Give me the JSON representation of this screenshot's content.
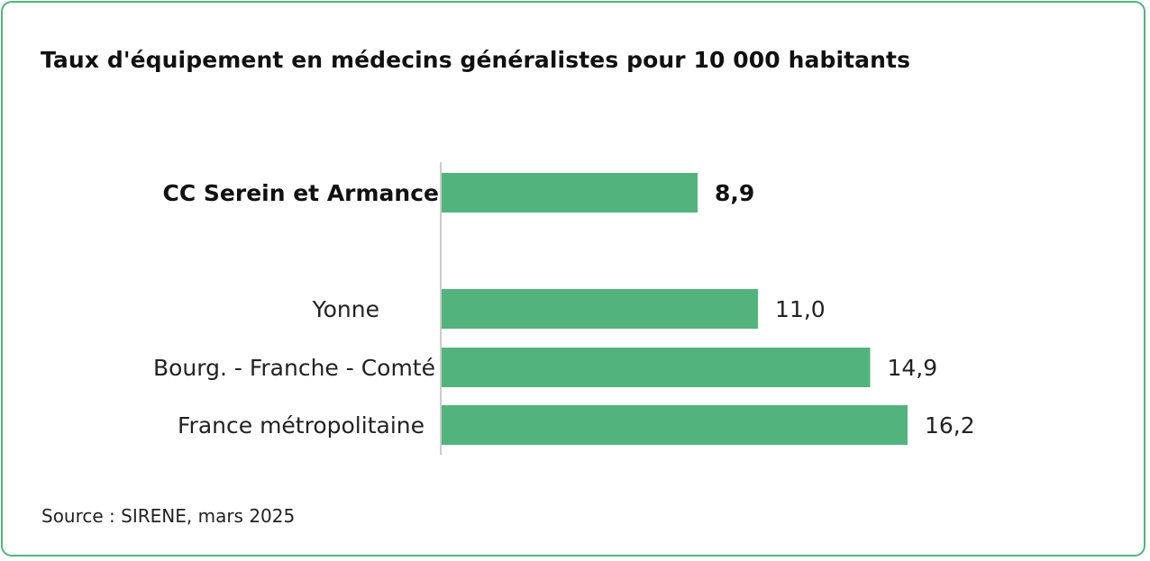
{
  "title": {
    "part1": "Taux d'équipement en médecins généralistes ",
    "part2": "pour 10 000 habitants"
  },
  "source": "Source : SIRENE, mars 2025",
  "colors": {
    "bar": "#52b47c",
    "border": "#52b47c",
    "axis": "#cccccc"
  },
  "chart_data": {
    "type": "bar",
    "orientation": "horizontal",
    "title": "Taux d'équipement en médecins généralistes pour 10 000 habitants",
    "categories": [
      "CC Serein et Armance",
      "Yonne",
      "Bourg. - Franche - Comté",
      "France métropolitaine"
    ],
    "values": [
      8.9,
      11.0,
      14.9,
      16.2
    ],
    "value_labels": [
      "8,9",
      "11,0",
      "14,9",
      "16,2"
    ],
    "highlight": [
      "CC Serein et Armance"
    ],
    "xlim": [
      0,
      16.2
    ],
    "grid": false,
    "legend": "none"
  }
}
